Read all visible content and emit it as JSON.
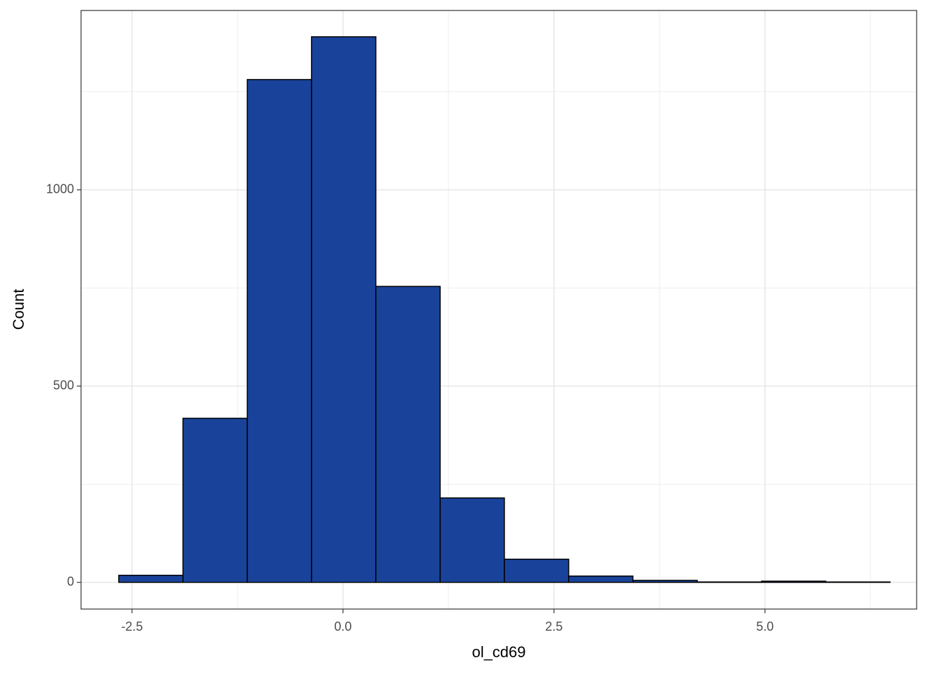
{
  "chart_data": {
    "type": "histogram",
    "x_label": "ol_cd69",
    "y_label": "Count",
    "bins": [
      -2.657,
      -1.896,
      -1.134,
      -0.373,
      0.389,
      1.151,
      1.912,
      2.674,
      3.435,
      4.197,
      4.959,
      5.72,
      6.482
    ],
    "values": [
      18,
      418,
      1281,
      1390,
      754,
      215,
      59,
      16,
      5,
      1,
      3,
      1
    ],
    "color": "#19439b",
    "edge_color": "#000000",
    "xlim": [
      -3.104,
      6.797
    ],
    "xticks": [
      {
        "value": -2.5,
        "label": "-2.5"
      },
      {
        "value": 0,
        "label": "0.0"
      },
      {
        "value": 2.5,
        "label": "2.5"
      },
      {
        "value": 5,
        "label": "5.0"
      }
    ],
    "x_minor_ticks": [
      -1.25,
      1.25,
      3.75,
      6.25
    ],
    "ylim": [
      -68,
      1457
    ],
    "yticks": [
      0,
      500,
      1000
    ],
    "y_minor_ticks": [
      250,
      750,
      1250
    ],
    "grid": true
  }
}
